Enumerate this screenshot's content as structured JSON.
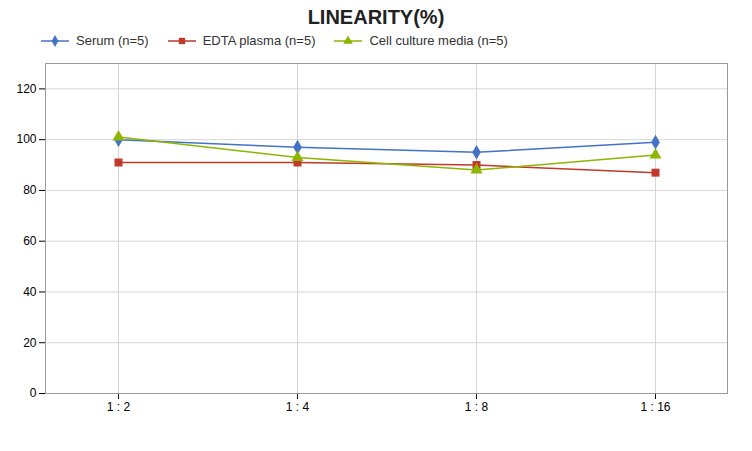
{
  "chart_data": {
    "type": "line",
    "title": "LINEARITY(%)",
    "categories": [
      "1 : 2",
      "1 : 4",
      "1 : 8",
      "1 : 16"
    ],
    "series": [
      {
        "name": "Serum (n=5)",
        "color": "#4472C4",
        "marker": "diamond",
        "values": [
          100,
          97,
          95,
          99
        ]
      },
      {
        "name": "EDTA plasma (n=5)",
        "color": "#C0392B",
        "marker": "square",
        "values": [
          91,
          91,
          90,
          87
        ]
      },
      {
        "name": "Cell culture media (n=5)",
        "color": "#8DB600",
        "marker": "triangle",
        "values": [
          101,
          93,
          88,
          94
        ]
      }
    ],
    "ylim": [
      0,
      130
    ],
    "yticks": [
      0,
      20,
      40,
      60,
      80,
      100,
      120
    ],
    "grid": true,
    "legend": "upper left"
  }
}
